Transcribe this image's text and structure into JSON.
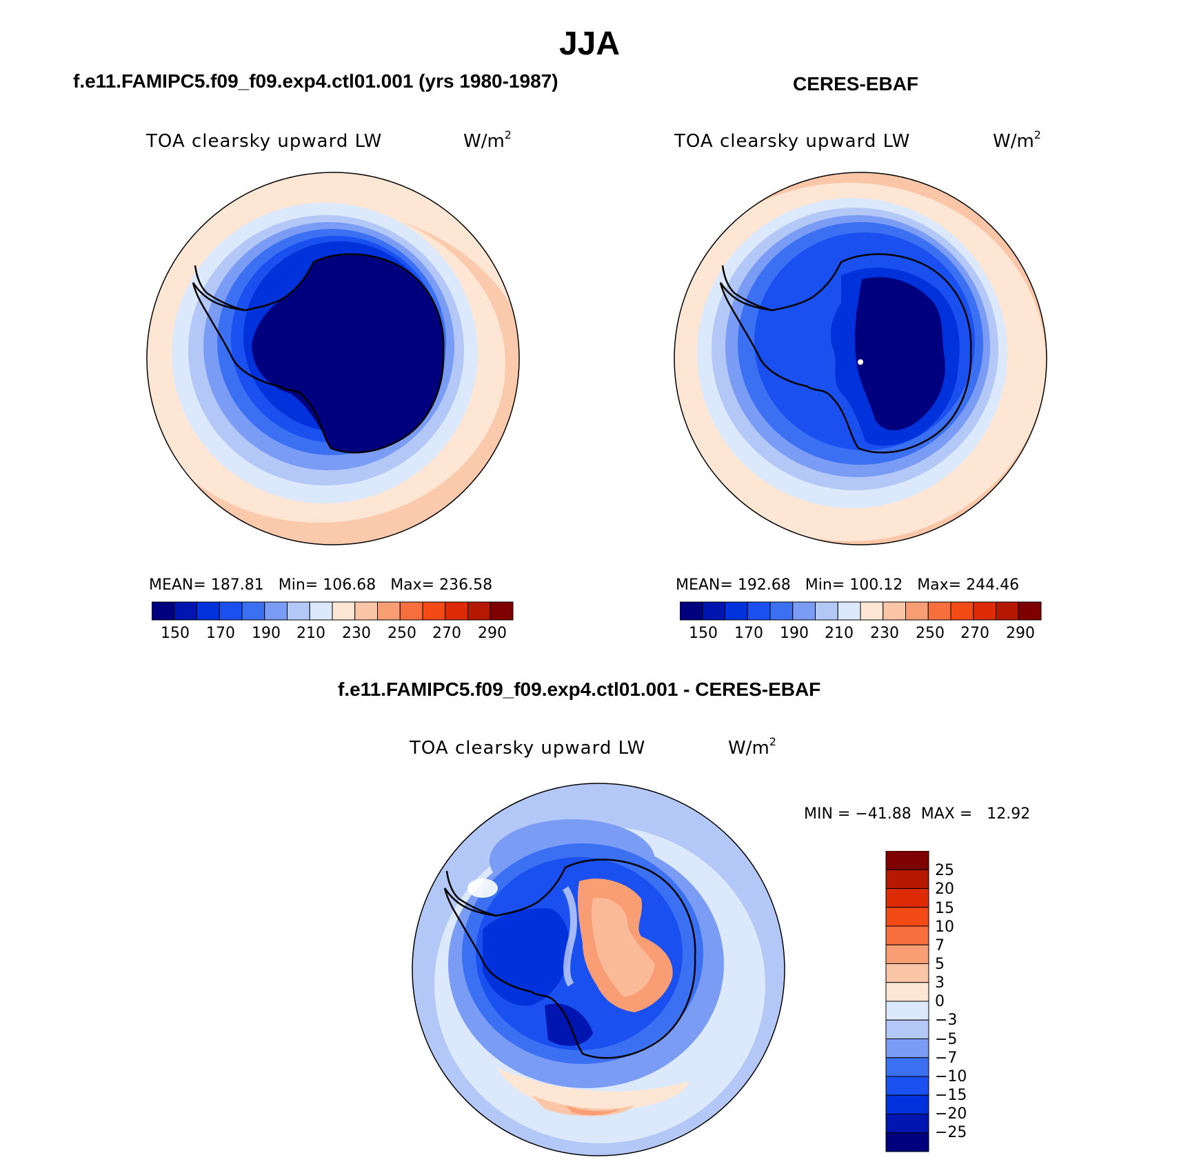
{
  "figure": {
    "title": "JJA"
  },
  "panels": {
    "model": {
      "title": "f.e11.FAMIPC5.f09_f09.exp4.ctl01.001 (yrs 1980-1987)",
      "variable": "TOA clearsky upward LW",
      "units_base": "W/m",
      "units_exp": "2",
      "stats": "MEAN= 187.81   Min= 106.68   Max= 236.58",
      "colorbar_ticks": [
        "150",
        "170",
        "190",
        "210",
        "230",
        "250",
        "270",
        "290"
      ]
    },
    "obs": {
      "title": "CERES-EBAF",
      "variable": "TOA clearsky upward LW",
      "units_base": "W/m",
      "units_exp": "2",
      "stats": "MEAN= 192.68   Min= 100.12   Max= 244.46",
      "colorbar_ticks": [
        "150",
        "170",
        "190",
        "210",
        "230",
        "250",
        "270",
        "290"
      ]
    },
    "diff": {
      "title": "f.e11.FAMIPC5.f09_f09.exp4.ctl01.001 - CERES-EBAF",
      "variable": "TOA clearsky upward LW",
      "units_base": "W/m",
      "units_exp": "2",
      "stats": "MIN = −41.88  MAX =   12.92",
      "colorbar_ticks": [
        "25",
        "20",
        "15",
        "10",
        "7",
        "5",
        "3",
        "0",
        "−3",
        "−5",
        "−7",
        "−10",
        "−15",
        "−20",
        "−25"
      ]
    }
  },
  "colors": {
    "abs_palette": [
      "#00007f",
      "#0015b0",
      "#0032db",
      "#1a50f0",
      "#3c70f2",
      "#7b9cf5",
      "#b4c8f7",
      "#dce8fb",
      "#fde6d3",
      "#fbc6a8",
      "#f89d74",
      "#f66f3d",
      "#f34a16",
      "#dc2b05",
      "#b41800",
      "#7f0000"
    ],
    "diff_palette": [
      "#7f0000",
      "#b41800",
      "#dc2b05",
      "#f34a16",
      "#f66f3d",
      "#f89d74",
      "#fbc6a8",
      "#fde6d3",
      "#dce8fb",
      "#b4c8f7",
      "#7b9cf5",
      "#3c70f2",
      "#1a50f0",
      "#0032db",
      "#0015b0",
      "#00007f"
    ]
  }
}
